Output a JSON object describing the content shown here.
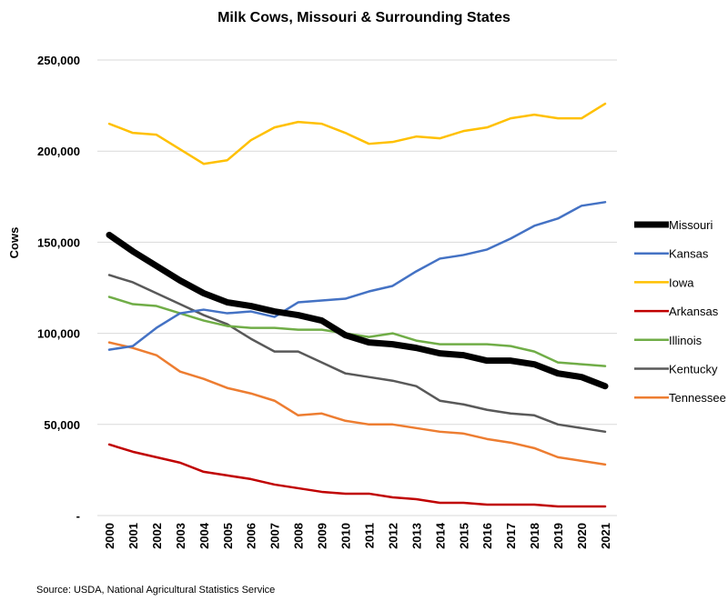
{
  "chart_data": {
    "type": "line",
    "title": "Milk Cows, Missouri & Surrounding States",
    "xlabel": "",
    "ylabel": "Cows",
    "ylim": [
      0,
      250000
    ],
    "yticks": [
      0,
      50000,
      100000,
      150000,
      200000,
      250000
    ],
    "ytick_labels": [
      "-",
      "50,000",
      "100,000",
      "150,000",
      "200,000",
      "250,000"
    ],
    "grid": true,
    "legend": "right",
    "source": "Source: USDA, National Agricultural Statistics Service",
    "x": [
      "2000",
      "2001",
      "2002",
      "2003",
      "2004",
      "2005",
      "2006",
      "2007",
      "2008",
      "2009",
      "2010",
      "2011",
      "2012",
      "2013",
      "2014",
      "2015",
      "2016",
      "2017",
      "2018",
      "2019",
      "2020",
      "2021"
    ],
    "series": [
      {
        "name": "Missouri",
        "color": "#000000",
        "values": [
          154000,
          145000,
          137000,
          129000,
          122000,
          117000,
          115000,
          112000,
          110000,
          107000,
          99000,
          95000,
          94000,
          92000,
          89000,
          88000,
          85000,
          85000,
          83000,
          78000,
          76000,
          71000
        ]
      },
      {
        "name": "Kansas",
        "color": "#4472C4",
        "values": [
          91000,
          93000,
          103000,
          111000,
          113000,
          111000,
          112000,
          109000,
          117000,
          118000,
          119000,
          123000,
          126000,
          134000,
          141000,
          143000,
          146000,
          152000,
          159000,
          163000,
          170000,
          172000
        ]
      },
      {
        "name": "Iowa",
        "color": "#FFC000",
        "values": [
          215000,
          210000,
          209000,
          201000,
          193000,
          195000,
          206000,
          213000,
          216000,
          215000,
          210000,
          204000,
          205000,
          208000,
          207000,
          211000,
          213000,
          218000,
          220000,
          218000,
          218000,
          226000
        ]
      },
      {
        "name": "Arkansas",
        "color": "#C00000",
        "values": [
          39000,
          35000,
          32000,
          29000,
          24000,
          22000,
          20000,
          17000,
          15000,
          13000,
          12000,
          12000,
          10000,
          9000,
          7000,
          7000,
          6000,
          6000,
          6000,
          5000,
          5000,
          5000
        ]
      },
      {
        "name": "Illinois",
        "color": "#70AD47",
        "values": [
          120000,
          116000,
          115000,
          111000,
          107000,
          104000,
          103000,
          103000,
          102000,
          102000,
          100000,
          98000,
          100000,
          96000,
          94000,
          94000,
          94000,
          93000,
          90000,
          84000,
          83000,
          82000
        ]
      },
      {
        "name": "Kentucky",
        "color": "#595959",
        "values": [
          132000,
          128000,
          122000,
          116000,
          110000,
          105000,
          97000,
          90000,
          90000,
          84000,
          78000,
          76000,
          74000,
          71000,
          63000,
          61000,
          58000,
          56000,
          55000,
          50000,
          48000,
          46000
        ]
      },
      {
        "name": "Tennessee",
        "color": "#ED7D31",
        "values": [
          95000,
          92000,
          88000,
          79000,
          75000,
          70000,
          67000,
          63000,
          55000,
          56000,
          52000,
          50000,
          50000,
          48000,
          46000,
          45000,
          42000,
          40000,
          37000,
          32000,
          30000,
          28000
        ]
      }
    ]
  }
}
